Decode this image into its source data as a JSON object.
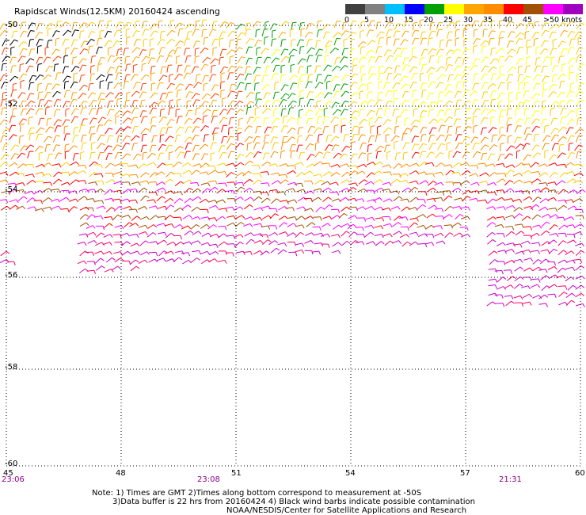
{
  "title": "Rapidscat Winds(12.5KM) 20160424 ascending",
  "legend": {
    "labels": [
      "0",
      "5",
      "10",
      "15",
      "20",
      "25",
      "30",
      "35",
      "40",
      "45",
      ">50 knots"
    ],
    "colors": [
      "#404040",
      "#808080",
      "#00bfff",
      "#0000ff",
      "#00a000",
      "#ffff00",
      "#ffa500",
      "#ff8c00",
      "#ff0000",
      "#a05000",
      "#ff00ff",
      "#a000c0"
    ]
  },
  "axes": {
    "lat_labels": [
      "-50",
      "-52",
      "-54",
      "-56",
      "-58",
      "-60"
    ],
    "lon_labels": [
      "45",
      "48",
      "51",
      "54",
      "57",
      "60"
    ]
  },
  "times": [
    "23:06",
    "23:08",
    "21:31"
  ],
  "notes": [
    "Note: 1) Times are GMT 2)Times along bottom correspond to measurement at -50S",
    "3)Data buffer is 22 hrs from 20160424 4) Black wind barbs indicate possible contamination",
    "NOAA/NESDIS/Center for Satellite Applications and Research"
  ]
}
